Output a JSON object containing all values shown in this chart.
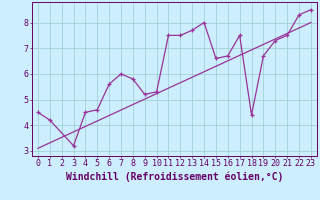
{
  "background_color": "#cceeff",
  "grid_color": "#99cccc",
  "line_color": "#993399",
  "marker_color": "#993399",
  "xlabel": "Windchill (Refroidissement éolien,°C)",
  "xlim": [
    -0.5,
    23.5
  ],
  "ylim": [
    2.8,
    8.8
  ],
  "xtick_vals": [
    0,
    1,
    2,
    3,
    4,
    5,
    6,
    7,
    8,
    9,
    10,
    11,
    12,
    13,
    14,
    15,
    16,
    17,
    18,
    19,
    20,
    21,
    22,
    23
  ],
  "xtick_labels": [
    "0",
    "1",
    "2",
    "3",
    "4",
    "5",
    "6",
    "7",
    "8",
    "9",
    "10",
    "11",
    "12",
    "13",
    "14",
    "15",
    "16",
    "17",
    "18",
    "19",
    "20",
    "21",
    "22",
    "23"
  ],
  "ytick_vals": [
    3,
    4,
    5,
    6,
    7,
    8
  ],
  "ytick_labels": [
    "3",
    "4",
    "5",
    "6",
    "7",
    "8"
  ],
  "curve_x": [
    0,
    1,
    3,
    4,
    5,
    6,
    7,
    8,
    9,
    10,
    11,
    12,
    13,
    14,
    15,
    16,
    17,
    18,
    19,
    20,
    21,
    22,
    23
  ],
  "curve_y": [
    4.5,
    4.2,
    3.2,
    4.5,
    4.6,
    5.6,
    6.0,
    5.8,
    5.2,
    5.3,
    7.5,
    7.5,
    7.7,
    8.0,
    6.6,
    6.7,
    7.5,
    4.4,
    6.7,
    7.3,
    7.5,
    8.3,
    8.5
  ],
  "trend_x": [
    0,
    23
  ],
  "trend_y": [
    3.1,
    8.0
  ],
  "font_color": "#660066",
  "tick_fontsize": 6,
  "label_fontsize": 7
}
